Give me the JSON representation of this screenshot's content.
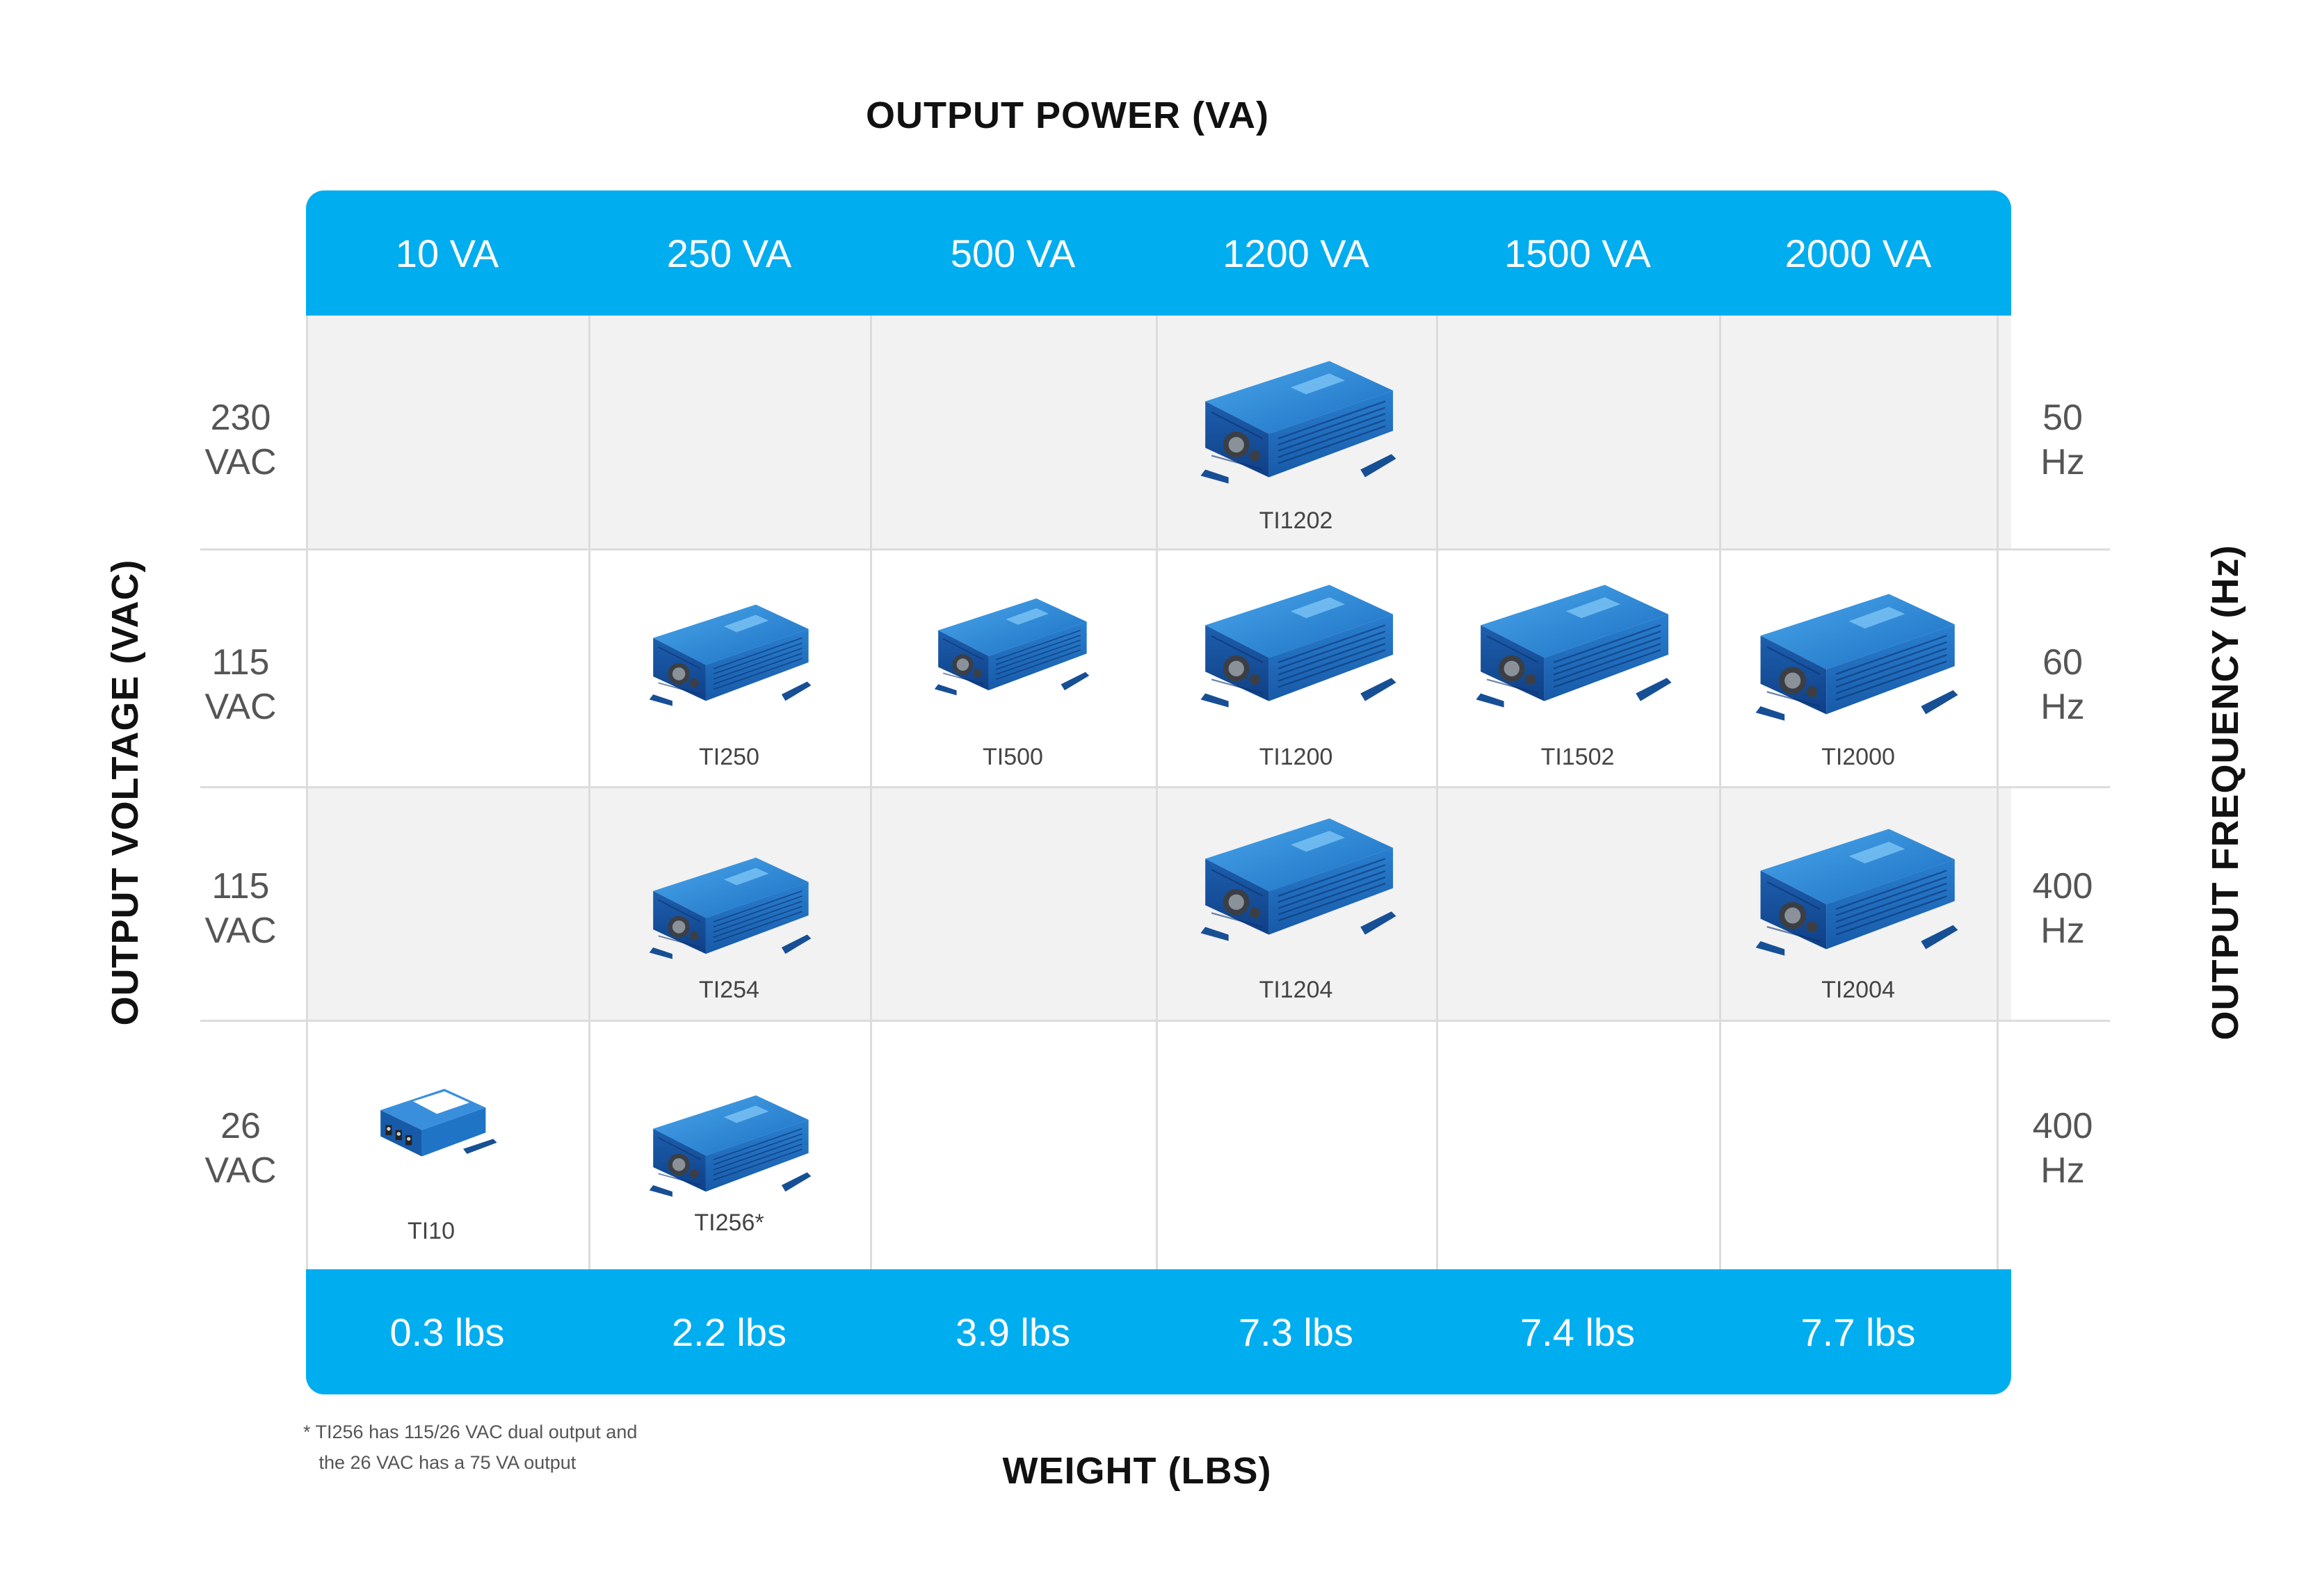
{
  "titles": {
    "top": "OUTPUT POWER (VA)",
    "bottom": "WEIGHT (LBS)",
    "left": "OUTPUT VOLTAGE (VAC)",
    "right": "OUTPUT FREQUENCY (Hz)"
  },
  "columns": [
    "10 VA",
    "250 VA",
    "500 VA",
    "1200 VA",
    "1500 VA",
    "2000 VA"
  ],
  "weights": [
    "0.3 lbs",
    "2.2 lbs",
    "3.9 lbs",
    "7.3 lbs",
    "7.4 lbs",
    "7.7 lbs"
  ],
  "rows": [
    {
      "voltage": [
        "230",
        "VAC"
      ],
      "frequency": [
        "50",
        "Hz"
      ]
    },
    {
      "voltage": [
        "115",
        "VAC"
      ],
      "frequency": [
        "60",
        "Hz"
      ]
    },
    {
      "voltage": [
        "115",
        "VAC"
      ],
      "frequency": [
        "400",
        "Hz"
      ]
    },
    {
      "voltage": [
        "26",
        "VAC"
      ],
      "frequency": [
        "400",
        "Hz"
      ]
    }
  ],
  "products": {
    "TI1202": "TI1202",
    "TI250": "TI250",
    "TI500": "TI500",
    "TI1200": "TI1200",
    "TI1502": "TI1502",
    "TI2000": "TI2000",
    "TI254": "TI254",
    "TI1204": "TI1204",
    "TI2004": "TI2004",
    "TI10": "TI10",
    "TI256": "TI256*"
  },
  "footnote": {
    "line1": "* TI256 has 115/26 VAC dual output and",
    "line2": "   the 26 VAC has a 75 VA output"
  },
  "colors": {
    "accent": "#00adef",
    "row_shade": "#f2f2f2",
    "product_blue": "#1f74c6"
  },
  "icons": {
    "product": "inverter-unit-icon",
    "small_product": "compact-inverter-icon"
  }
}
